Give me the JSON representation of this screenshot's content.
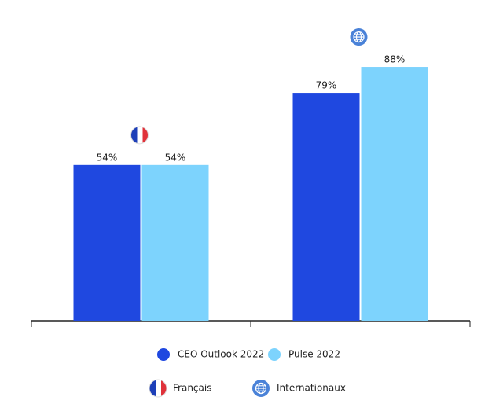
{
  "chart_data": {
    "type": "bar",
    "categories": [
      "Français",
      "Internationaux"
    ],
    "series": [
      {
        "name": "CEO Outlook 2022",
        "color": "#1f48e0",
        "values": [
          54,
          79
        ],
        "value_labels": [
          "54%",
          "79%"
        ]
      },
      {
        "name": "Pulse 2022",
        "color": "#7dd3fd",
        "values": [
          54,
          88
        ],
        "value_labels": [
          "54%",
          "88%"
        ]
      }
    ],
    "ylim": [
      0,
      100
    ]
  }
}
